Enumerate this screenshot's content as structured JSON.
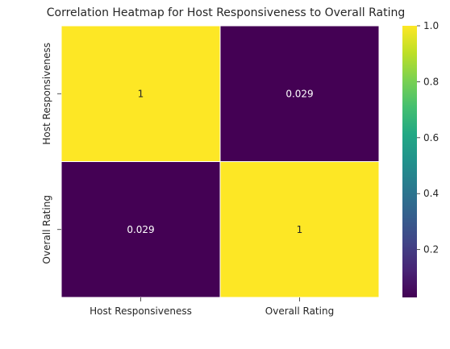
{
  "chart_data": {
    "type": "heatmap",
    "title": "Correlation Heatmap for Host Responsiveness to Overall Rating",
    "x_categories": [
      "Host Responsiveness",
      "Overall Rating"
    ],
    "y_categories": [
      "Host Responsiveness",
      "Overall Rating"
    ],
    "values": [
      [
        1.0,
        0.029
      ],
      [
        0.029,
        1.0
      ]
    ],
    "annotations": [
      [
        "1",
        "0.029"
      ],
      [
        "0.029",
        "1"
      ]
    ],
    "colormap": "viridis",
    "colorbar": {
      "vmin": 0.029,
      "vmax": 1.0,
      "ticks": [
        0.2,
        0.4,
        0.6,
        0.8,
        1.0
      ],
      "tick_labels": [
        "0.2",
        "0.4",
        "0.6",
        "0.8",
        "1.0"
      ]
    },
    "colors": {
      "high": "#fde725",
      "low": "#440154",
      "annotation_text": "#ffffff",
      "annotation_text_on_light": "#262626",
      "cell_border": "#ffffff"
    }
  }
}
